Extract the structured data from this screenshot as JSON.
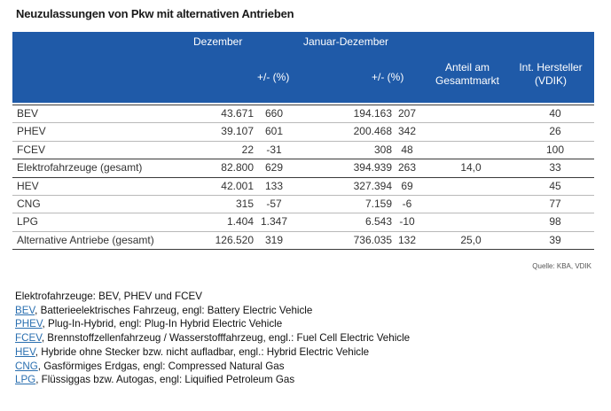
{
  "title": "Neuzulassungen von Pkw mit alternativen Antrieben",
  "header": {
    "dezember": "Dezember",
    "januar_dezember": "Januar-Dezember",
    "pct_dez": "+/- (%)",
    "pct_jd": "+/- (%)",
    "anteil_line1": "Anteil am",
    "anteil_line2": "Gesamtmarkt",
    "int_line1": "Int. Hersteller",
    "int_line2": "(VDIK)"
  },
  "rows": [
    {
      "label": "BEV",
      "dez": "43.671",
      "dez_pct": "660",
      "jd": "194.163",
      "jd_pct": "207",
      "anteil": "",
      "int": "40"
    },
    {
      "label": "PHEV",
      "dez": "39.107",
      "dez_pct": "601",
      "jd": "200.468",
      "jd_pct": "342",
      "anteil": "",
      "int": "26"
    },
    {
      "label": "FCEV",
      "dez": "22",
      "dez_pct": "-31",
      "jd": "308",
      "jd_pct": "48",
      "anteil": "",
      "int": "100"
    },
    {
      "label": "Elektrofahrzeuge (gesamt)",
      "dez": "82.800",
      "dez_pct": "629",
      "jd": "394.939",
      "jd_pct": "263",
      "anteil": "14,0",
      "int": "33"
    },
    {
      "label": "HEV",
      "dez": "42.001",
      "dez_pct": "133",
      "jd": "327.394",
      "jd_pct": "69",
      "anteil": "",
      "int": "45"
    },
    {
      "label": "CNG",
      "dez": "315",
      "dez_pct": "-57",
      "jd": "7.159",
      "jd_pct": "-6",
      "anteil": "",
      "int": "77"
    },
    {
      "label": "LPG",
      "dez": "1.404",
      "dez_pct": "1.347",
      "jd": "6.543",
      "jd_pct": "-10",
      "anteil": "",
      "int": "98"
    },
    {
      "label": "Alternative Antriebe (gesamt)",
      "dez": "126.520",
      "dez_pct": "319",
      "jd": "736.035",
      "jd_pct": "132",
      "anteil": "25,0",
      "int": "39"
    }
  ],
  "source": "Quelle: KBA, VDIK",
  "notes": {
    "intro": "Elektrofahrzeuge: BEV, PHEV und FCEV",
    "items": [
      {
        "abbr": "BEV",
        "text": ", Batterieelektrisches Fahrzeug, engl: Battery Electric Vehicle"
      },
      {
        "abbr": "PHEV",
        "text": ", Plug-In-Hybrid, engl: Plug-In Hybrid Electric Vehicle"
      },
      {
        "abbr": "FCEV",
        "text": ", Brennstoffzellenfahrzeug / Wasserstofffahrzeug, engl.: Fuel Cell Electric Vehicle"
      },
      {
        "abbr": "HEV",
        "text": ", Hybride ohne Stecker bzw. nicht aufladbar, engl.: Hybrid Electric Vehicle"
      },
      {
        "abbr": "CNG",
        "text": ", Gasförmiges Erdgas, engl: Compressed Natural Gas"
      },
      {
        "abbr": "LPG",
        "text": ", Flüssiggas bzw. Autogas, engl: Liquified Petroleum Gas"
      }
    ]
  }
}
